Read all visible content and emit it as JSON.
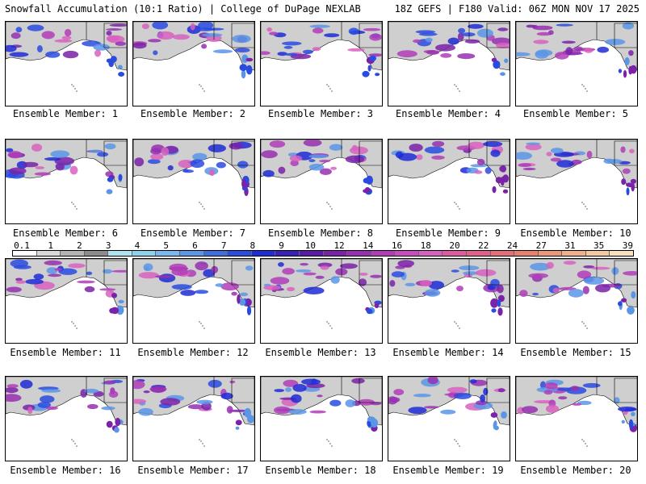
{
  "header": {
    "title_left": "Snowfall Accumulation (10:1 Ratio) | College of DuPage NEXLAB",
    "title_right": "18Z GEFS | F180 Valid: 06Z MON NOV 17 2025"
  },
  "panels": [
    {
      "label": "Ensemble Member: 1"
    },
    {
      "label": "Ensemble Member: 2"
    },
    {
      "label": "Ensemble Member: 3"
    },
    {
      "label": "Ensemble Member: 4"
    },
    {
      "label": "Ensemble Member: 5"
    },
    {
      "label": "Ensemble Member: 6"
    },
    {
      "label": "Ensemble Member: 7"
    },
    {
      "label": "Ensemble Member: 8"
    },
    {
      "label": "Ensemble Member: 9"
    },
    {
      "label": "Ensemble Member: 10"
    },
    {
      "label": "Ensemble Member: 11"
    },
    {
      "label": "Ensemble Member: 12"
    },
    {
      "label": "Ensemble Member: 13"
    },
    {
      "label": "Ensemble Member: 14"
    },
    {
      "label": "Ensemble Member: 15"
    },
    {
      "label": "Ensemble Member: 16"
    },
    {
      "label": "Ensemble Member: 17"
    },
    {
      "label": "Ensemble Member: 18"
    },
    {
      "label": "Ensemble Member: 19"
    },
    {
      "label": "Ensemble Member: 20"
    }
  ],
  "legend": {
    "labels": [
      "0.1",
      "1",
      "2",
      "3",
      "4",
      "5",
      "6",
      "7",
      "8",
      "9",
      "10",
      "12",
      "14",
      "16",
      "18",
      "20",
      "22",
      "24",
      "27",
      "31",
      "35",
      "39"
    ],
    "colors": [
      "#ffffff",
      "#d9d9d9",
      "#b3b3b3",
      "#8c8c8c",
      "#aee3f0",
      "#8fd0ea",
      "#7ab8f0",
      "#5b95e6",
      "#3f6ee0",
      "#2a4be0",
      "#1f2bd6",
      "#3a1fb8",
      "#5a1aa8",
      "#7a22a8",
      "#9630b0",
      "#b03cb8",
      "#c84cc0",
      "#d860c0",
      "#e05aa0",
      "#e0608a",
      "#e46f78",
      "#e88070",
      "#ec9878",
      "#f0b088",
      "#f4c8a0",
      "#f8e0c0"
    ]
  }
}
